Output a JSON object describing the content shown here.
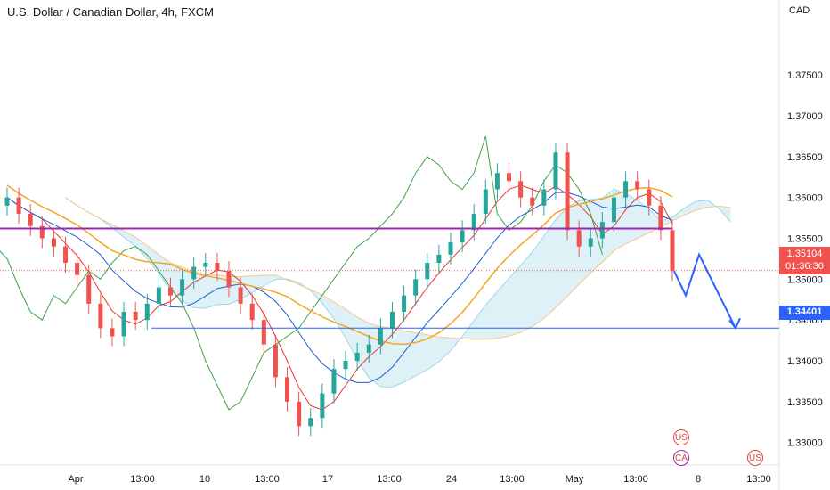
{
  "header": {
    "title": "U.S. Dollar / Canadian Dollar, 4h, FXCM",
    "currency": "CAD"
  },
  "badges": {
    "last_price": "1.35104",
    "countdown": "01:36:30",
    "target_price": "1.34401"
  },
  "colors": {
    "up": "#26a69a",
    "down": "#ef5350",
    "tenkan": "#e53935",
    "kijun": "#1e5fd6",
    "chikou": "#43a047",
    "senkou_a": "#9fd8e8",
    "senkou_b": "#f7c88a",
    "orange": "#f5a623",
    "purple": "#9c27b0",
    "target_line": "#2962ff"
  },
  "events": [
    {
      "name": "us-flag-icon",
      "label": "US"
    },
    {
      "name": "ca-flag-icon",
      "label": "CA"
    },
    {
      "name": "us-flag-icon-2",
      "label": "US"
    }
  ],
  "chart_data": {
    "type": "candlestick",
    "ylim": [
      1.328,
      1.382
    ],
    "y_ticks": [
      "1.37500",
      "1.37000",
      "1.36500",
      "1.36000",
      "1.35500",
      "1.35000",
      "1.34500",
      "1.34000",
      "1.33500",
      "1.33000"
    ],
    "x_ticks": [
      "Apr",
      "13:00",
      "10",
      "13:00",
      "17",
      "13:00",
      "24",
      "13:00",
      "May",
      "13:00",
      "8",
      "13:00"
    ],
    "last_price": 1.35104,
    "target_price": 1.34401,
    "resistance_level": 1.3562,
    "closes": [
      1.36,
      1.358,
      1.3565,
      1.355,
      1.354,
      1.352,
      1.3505,
      1.347,
      1.344,
      1.343,
      1.346,
      1.345,
      1.347,
      1.349,
      1.348,
      1.35,
      1.3515,
      1.352,
      1.351,
      1.349,
      1.347,
      1.345,
      1.342,
      1.338,
      1.335,
      1.332,
      1.333,
      1.336,
      1.339,
      1.34,
      1.341,
      1.342,
      1.344,
      1.346,
      1.348,
      1.35,
      1.352,
      1.353,
      1.3545,
      1.356,
      1.358,
      1.361,
      1.363,
      1.362,
      1.36,
      1.359,
      1.361,
      1.3655,
      1.356,
      1.354,
      1.355,
      1.357,
      1.36,
      1.362,
      1.361,
      1.359,
      1.356,
      1.351
    ],
    "opens": [
      1.359,
      1.36,
      1.358,
      1.3565,
      1.355,
      1.354,
      1.352,
      1.3505,
      1.347,
      1.344,
      1.343,
      1.346,
      1.345,
      1.347,
      1.349,
      1.348,
      1.35,
      1.3515,
      1.352,
      1.351,
      1.349,
      1.347,
      1.345,
      1.342,
      1.338,
      1.335,
      1.332,
      1.333,
      1.336,
      1.339,
      1.34,
      1.341,
      1.342,
      1.344,
      1.346,
      1.348,
      1.35,
      1.352,
      1.353,
      1.3545,
      1.356,
      1.358,
      1.361,
      1.363,
      1.362,
      1.36,
      1.359,
      1.361,
      1.3655,
      1.356,
      1.354,
      1.355,
      1.357,
      1.36,
      1.362,
      1.361,
      1.359,
      1.356
    ],
    "forecast_path": [
      1.351,
      1.348,
      1.353,
      1.344
    ]
  }
}
